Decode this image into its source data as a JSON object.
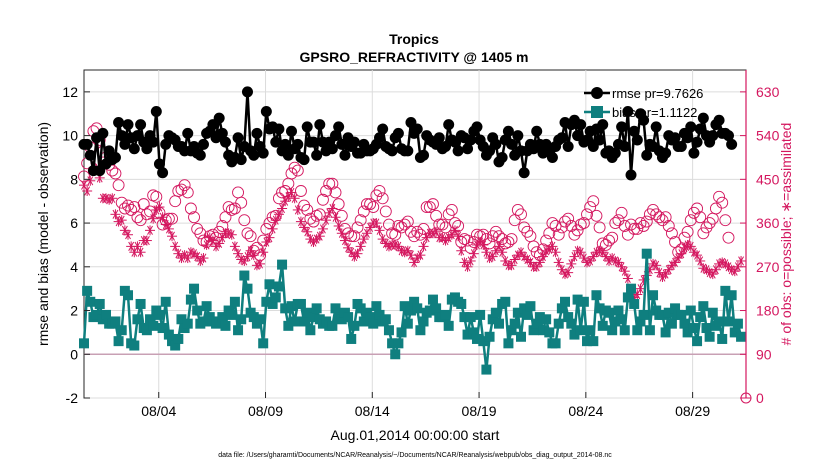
{
  "chart_data": {
    "type": "line",
    "title": "Tropics",
    "subtitle": "GPSRO_REFRACTIVITY @ 1405 m",
    "xlabel": "Aug.01,2014 00:00:00 start",
    "ylabel_left": "rmse and bias (model - observation)",
    "ylabel_right": "# of obs: o=possible; ∗=assimilated",
    "footer": "data file: /Users/gharamti/Documents/NCAR/Reanalysis/~/Documents/NCAR/Reanalysis/webpub/obs_diag_output_2014-08.nc",
    "xlim": [
      0.5,
      31.5
    ],
    "ylim_left": [
      -2,
      13
    ],
    "ylim_right": [
      0,
      675
    ],
    "x_ticks": [
      {
        "value": 4,
        "label": "08/04"
      },
      {
        "value": 9,
        "label": "08/09"
      },
      {
        "value": 14,
        "label": "08/14"
      },
      {
        "value": 19,
        "label": "08/19"
      },
      {
        "value": 24,
        "label": "08/24"
      },
      {
        "value": 29,
        "label": "08/29"
      }
    ],
    "y_ticks_left": [
      {
        "value": -2,
        "label": "-2"
      },
      {
        "value": 0,
        "label": "0"
      },
      {
        "value": 2,
        "label": "2"
      },
      {
        "value": 4,
        "label": "4"
      },
      {
        "value": 6,
        "label": "6"
      },
      {
        "value": 8,
        "label": "8"
      },
      {
        "value": 10,
        "label": "10"
      },
      {
        "value": 12,
        "label": "12"
      }
    ],
    "y_ticks_right": [
      {
        "value": 0,
        "label": "0"
      },
      {
        "value": 90,
        "label": "90"
      },
      {
        "value": 180,
        "label": "180"
      },
      {
        "value": 270,
        "label": "270"
      },
      {
        "value": 360,
        "label": "360"
      },
      {
        "value": 450,
        "label": "450"
      },
      {
        "value": 540,
        "label": "540"
      },
      {
        "value": 630,
        "label": "630"
      }
    ],
    "legend": {
      "position": "top-right",
      "rmse_label": "rmse pr=9.7626",
      "bias_label": "bias pr=1.1122"
    },
    "zero_line": 0,
    "series": [
      {
        "name": "rmse",
        "color": "#000000",
        "marker": "circle",
        "values": [
          9.6,
          9.6,
          9.1,
          8.4,
          9.9,
          8.4,
          10.1,
          8.7,
          9.3,
          8.9,
          9.0,
          10.6,
          10.0,
          9.6,
          10.5,
          9.9,
          9.4,
          10.0,
          10.5,
          9.7,
          9.4,
          10.0,
          9.7,
          11.1,
          8.7,
          8.3,
          9.6,
          10.0,
          9.9,
          9.8,
          9.5,
          9.5,
          9.3,
          10.1,
          9.3,
          9.5,
          9.2,
          9.1,
          9.6,
          10.1,
          10.2,
          10.5,
          9.9,
          10.8,
          10.1,
          9.7,
          9.1,
          8.8,
          9.0,
          9.9,
          8.9,
          9.5,
          12.0,
          9.3,
          9.1,
          10.1,
          9.5,
          9.2,
          11.1,
          10.3,
          10.4,
          9.7,
          10.3,
          9.3,
          9.6,
          9.1,
          10.2,
          9.4,
          9.6,
          9.0,
          8.9,
          10.4,
          9.7,
          9.7,
          9.1,
          10.5,
          9.7,
          9.3,
          9.7,
          9.4,
          10.0,
          10.4,
          9.6,
          9.1,
          9.9,
          9.5,
          9.7,
          9.2,
          9.2,
          9.6,
          9.3,
          9.3,
          9.4,
          9.6,
          9.9,
          10.3,
          9.5,
          9.4,
          9.3,
          9.9,
          10.1,
          9.4,
          9.3,
          9.3,
          10.6,
          10.1,
          10.3,
          9.0,
          9.1,
          10.0,
          9.8,
          9.7,
          9.6,
          9.9,
          9.4,
          9.5,
          10.5,
          9.8,
          9.7,
          9.3,
          10.0,
          9.9,
          9.4,
          9.8,
          10.2,
          10.4,
          9.8,
          9.5,
          9.1,
          9.3,
          9.9,
          9.6,
          8.8,
          9.0,
          9.8,
          10.2,
          9.6,
          9.1,
          10.0,
          9.3,
          8.3,
          9.3,
          9.6,
          9.4,
          10.2,
          9.6,
          9.2,
          9.6,
          9.3,
          9.0,
          9.5,
          9.8,
          9.9,
          10.6,
          9.5,
          10.5,
          10.7,
          10.0,
          10.5,
          9.7,
          9.8,
          10.2,
          9.5,
          10.3,
          9.8,
          10.5,
          9.2,
          9.3,
          9.0,
          9.2,
          9.6,
          10.4,
          9.5,
          11.1,
          8.2,
          10.2,
          9.8,
          11.0,
          10.7,
          9.1,
          9.6,
          9.5,
          10.4,
          9.3,
          9.0,
          9.2,
          10.0,
          9.8,
          9.9,
          9.5,
          9.5,
          10.1,
          9.9,
          10.4,
          9.2,
          9.7,
          10.3,
          10.8,
          10.0,
          9.7,
          10.0,
          10.5,
          10.7,
          10.1,
          10.1,
          10.0,
          9.6
        ],
        "x_start": 0.5,
        "x_step": 0.14722
      },
      {
        "name": "bias",
        "color": "#0f7f7f",
        "marker": "square",
        "values": [
          0.5,
          2.9,
          2.4,
          1.7,
          1.8,
          2.3,
          1.6,
          1.8,
          1.4,
          1.4,
          1.5,
          0.6,
          1.1,
          2.9,
          2.7,
          0.5,
          0.4,
          1.6,
          2.3,
          1.2,
          1.1,
          1.6,
          1.3,
          2.0,
          1.8,
          1.2,
          2.4,
          0.9,
          0.6,
          0.4,
          0.7,
          1.6,
          1.2,
          1.4,
          2.5,
          3.0,
          2.0,
          1.4,
          1.5,
          2.2,
          1.7,
          1.5,
          1.4,
          1.5,
          1.7,
          1.3,
          2.0,
          1.8,
          2.4,
          1.1,
          1.6,
          3.6,
          3.0,
          1.9,
          1.7,
          1.4,
          1.6,
          0.5,
          2.4,
          3.2,
          2.3,
          2.6,
          3.1,
          4.1,
          2.1,
          1.3,
          2.2,
          1.5,
          2.3,
          2.3,
          1.5,
          1.9,
          1.1,
          1.7,
          2.1,
          1.6,
          1.4,
          1.5,
          1.3,
          1.3,
          2.1,
          1.7,
          1.6,
          1.9,
          1.7,
          0.7,
          1.3,
          2.3,
          2.1,
          1.5,
          1.9,
          1.7,
          1.4,
          2.2,
          1.8,
          1.5,
          1.6,
          1.1,
          0.5,
          0.0,
          0.5,
          1.0,
          2.2,
          1.4,
          2.0,
          2.4,
          2.1,
          1.1,
          1.5,
          1.9,
          2.0,
          2.5,
          2.1,
          1.7,
          1.7,
          1.8,
          1.3,
          2.5,
          2.6,
          2.4,
          2.3,
          1.7,
          0.9,
          1.7,
          1.0,
          0.7,
          1.8,
          0.6,
          -0.7,
          0.8,
          1.6,
          1.9,
          1.4,
          2.3,
          2.4,
          0.5,
          1.1,
          1.4,
          1.9,
          0.8,
          2.1,
          1.8,
          2.2,
          1.1,
          1.4,
          1.7,
          1.1,
          1.6,
          1.0,
          0.5,
          0.5,
          1.4,
          2.1,
          2.4,
          1.7,
          1.4,
          0.9,
          2.5,
          1.1,
          2.4,
          0.6,
          1.1,
          0.6,
          2.7,
          2.1,
          1.3,
          2.0,
          1.9,
          1.1,
          1.5,
          2.0,
          1.6,
          1.1,
          2.6,
          3.0,
          2.3,
          1.1,
          1.5,
          1.8,
          4.6,
          1.1,
          2.7,
          2.0,
          1.8,
          1.8,
          1.0,
          1.9,
          1.4,
          2.1,
          1.8,
          1.8,
          1.4,
          1.0,
          2.0,
          1.2,
          0.6,
          1.7,
          2.2,
          1.2,
          0.8,
          1.9,
          1.3,
          1.5,
          0.7,
          2.9,
          1.5,
          2.7,
          1.0,
          1.4,
          0.8
        ],
        "x_start": 0.5,
        "x_step": 0.14722
      },
      {
        "name": "possible",
        "color": "#d4175f",
        "marker": "open-circle",
        "axis": "right",
        "values": [
          456,
          483,
          516,
          549,
          555,
          531,
          507,
          495,
          480,
          468,
          462,
          438,
          402,
          390,
          396,
          387,
          393,
          372,
          366,
          399,
          378,
          384,
          417,
          414,
          381,
          357,
          366,
          369,
          369,
          405,
          426,
          429,
          438,
          423,
          390,
          372,
          348,
          339,
          324,
          321,
          333,
          336,
          330,
          342,
          354,
          372,
          393,
          387,
          390,
          423,
          402,
          366,
          339,
          333,
          303,
          309,
          294,
          324,
          348,
          360,
          372,
          375,
          411,
          423,
          426,
          441,
          462,
          474,
          468,
          426,
          396,
          387,
          369,
          363,
          375,
          378,
          408,
          426,
          441,
          441,
          423,
          399,
          375,
          348,
          339,
          333,
          333,
          351,
          366,
          384,
          399,
          399,
          393,
          417,
          426,
          411,
          384,
          357,
          339,
          336,
          354,
          351,
          357,
          363,
          342,
          333,
          342,
          336,
          348,
          393,
          393,
          399,
          375,
          357,
          357,
          351,
          378,
          387,
          360,
          354,
          321,
          327,
          324,
          309,
          321,
          336,
          333,
          336,
          327,
          318,
          333,
          342,
          333,
          327,
          318,
          321,
          327,
          366,
          387,
          378,
          351,
          342,
          333,
          312,
          300,
          294,
          306,
          324,
          339,
          360,
          354,
          336,
          351,
          363,
          369,
          354,
          336,
          345,
          357,
          360,
          378,
          393,
          405,
          375,
          351,
          318,
          315,
          324,
          330,
          360,
          366,
          381,
          354,
          336,
          357,
          348,
          348,
          360,
          354,
          363,
          378,
          387,
          378,
          372,
          366,
          372,
          354,
          339,
          321,
          300,
          306,
          330,
          342,
          366,
          381,
          390,
          372,
          339,
          351,
          360,
          369,
          390,
          414,
          402,
          366,
          330
        ],
        "x_start": 0.5,
        "x_step": 0.14722
      },
      {
        "name": "assimilated",
        "color": "#d4175f",
        "marker": "asterisk",
        "axis": "right",
        "values": [
          438,
          426,
          447,
          474,
          471,
          453,
          411,
          411,
          408,
          411,
          378,
          363,
          366,
          345,
          336,
          312,
          300,
          312,
          300,
          324,
          324,
          345,
          369,
          387,
          393,
          372,
          357,
          348,
          333,
          312,
          297,
          288,
          294,
          288,
          300,
          297,
          291,
          282,
          288,
          315,
          330,
          324,
          312,
          318,
          330,
          339,
          339,
          336,
          312,
          297,
          285,
          282,
          291,
          303,
          294,
          273,
          276,
          300,
          321,
          330,
          348,
          366,
          378,
          390,
          405,
          414,
          423,
          411,
          387,
          363,
          351,
          342,
          327,
          321,
          327,
          333,
          348,
          366,
          381,
          390,
          372,
          354,
          339,
          324,
          309,
          300,
          291,
          297,
          312,
          327,
          339,
          351,
          360,
          360,
          345,
          327,
          318,
          312,
          315,
          315,
          312,
          303,
          300,
          303,
          294,
          279,
          288,
          294,
          312,
          330,
          339,
          339,
          342,
          330,
          330,
          324,
          330,
          336,
          345,
          333,
          303,
          279,
          270,
          282,
          297,
          315,
          321,
          315,
          300,
          288,
          291,
          303,
          312,
          300,
          282,
          273,
          273,
          285,
          294,
          300,
          291,
          285,
          279,
          270,
          270,
          279,
          291,
          303,
          306,
          312,
          300,
          279,
          264,
          255,
          258,
          276,
          291,
          303,
          300,
          288,
          279,
          282,
          291,
          300,
          303,
          300,
          291,
          282,
          288,
          282,
          279,
          270,
          261,
          246,
          222,
          207,
          213,
          225,
          243,
          252,
          264,
          276,
          273,
          258,
          249,
          255,
          264,
          273,
          279,
          288,
          297,
          309,
          315,
          312,
          300,
          294,
          282,
          267,
          264,
          258,
          255,
          264,
          276,
          279,
          276,
          270,
          264,
          261,
          270,
          282
        ],
        "x_start": 0.5,
        "x_step": 0.14722
      }
    ]
  }
}
